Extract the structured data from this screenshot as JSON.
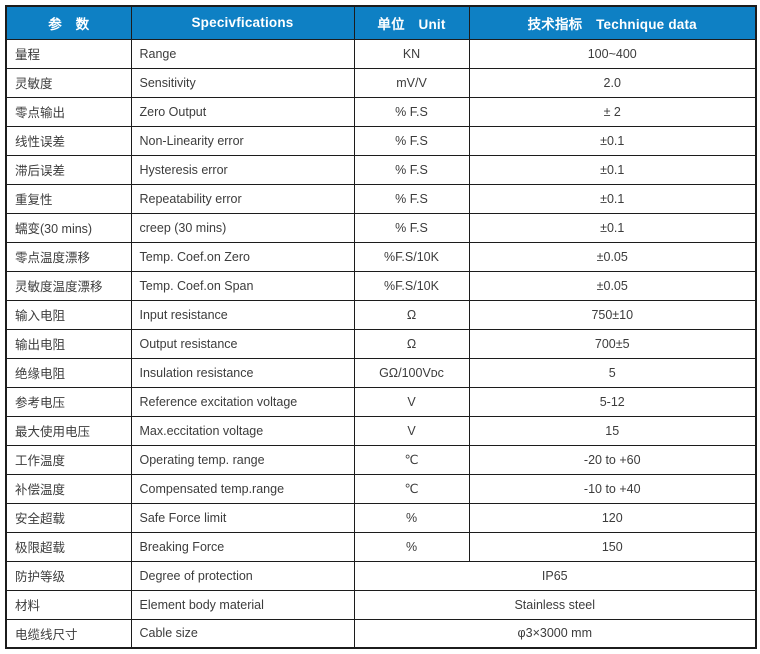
{
  "page": {
    "background": "#ffffff"
  },
  "table": {
    "accent_color": "#0e80c4",
    "header_text_color": "#ffffff",
    "border_color": "#1c1c1c",
    "body_text_color": "#3c3c3c",
    "headers": [
      "参　数",
      "Specivfications",
      "单位　Unit",
      "技术指标　Technique data"
    ],
    "rows": [
      {
        "param": "量程",
        "spec": "Range",
        "unit": "KN",
        "value": "100~400"
      },
      {
        "param": "灵敏度",
        "spec": "Sensitivity",
        "unit": "mV/V",
        "value": "2.0"
      },
      {
        "param": "零点输出",
        "spec": "Zero Output",
        "unit": "% F.S",
        "value": "± 2"
      },
      {
        "param": "线性误差",
        "spec": "Non-Linearity error",
        "unit": "% F.S",
        "value": "±0.1"
      },
      {
        "param": "滞后误差",
        "spec": "Hysteresis error",
        "unit": "% F.S",
        "value": "±0.1"
      },
      {
        "param": "重复性",
        "spec": "Repeatability error",
        "unit": "% F.S",
        "value": "±0.1"
      },
      {
        "param": "蠕变(30 mins)",
        "spec": "creep (30 mins)",
        "unit": "% F.S",
        "value": "±0.1"
      },
      {
        "param": "零点温度漂移",
        "spec": "Temp. Coef.on Zero",
        "unit": "%F.S/10K",
        "value": "±0.05"
      },
      {
        "param": "灵敏度温度漂移",
        "spec": "Temp. Coef.on Span",
        "unit": "%F.S/10K",
        "value": "±0.05"
      },
      {
        "param": "输入电阻",
        "spec": "Input resistance",
        "unit": "Ω",
        "value": "750±10"
      },
      {
        "param": "输出电阻",
        "spec": "Output resistance",
        "unit": "Ω",
        "value": "700±5"
      },
      {
        "param": "绝缘电阻",
        "spec": "Insulation resistance",
        "unit": "GΩ/100Vᴅᴄ",
        "value": "5"
      },
      {
        "param": "参考电压",
        "spec": "Reference excitation voltage",
        "unit": "V",
        "value": "5-12"
      },
      {
        "param": "最大使用电压",
        "spec": "Max.eccitation voltage",
        "unit": "V",
        "value": "15"
      },
      {
        "param": "工作温度",
        "spec": "Operating temp. range",
        "unit": "℃",
        "value": "-20 to +60"
      },
      {
        "param": "补偿温度",
        "spec": "Compensated temp.range",
        "unit": "℃",
        "value": "-10 to +40"
      },
      {
        "param": "安全超载",
        "spec": "Safe Force limit",
        "unit": "%",
        "value": "120"
      },
      {
        "param": "极限超载",
        "spec": "Breaking Force",
        "unit": "%",
        "value": "150"
      },
      {
        "param": "防护等级",
        "spec": "Degree of protection",
        "merged": true,
        "value": "IP65"
      },
      {
        "param": "材料",
        "spec": "Element body material",
        "merged": true,
        "value": "Stainless steel"
      },
      {
        "param": "电缆线尺寸",
        "spec": "Cable size",
        "merged": true,
        "value": "φ3×3000 mm"
      }
    ]
  }
}
